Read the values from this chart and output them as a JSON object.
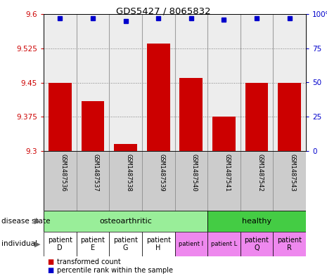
{
  "title": "GDS5427 / 8065832",
  "samples": [
    "GSM1487536",
    "GSM1487537",
    "GSM1487538",
    "GSM1487539",
    "GSM1487540",
    "GSM1487541",
    "GSM1487542",
    "GSM1487543"
  ],
  "bar_values": [
    9.45,
    9.41,
    9.315,
    9.535,
    9.46,
    9.375,
    9.45,
    9.45
  ],
  "percentile_values": [
    97,
    97,
    95,
    97,
    97,
    96,
    97,
    97
  ],
  "ylim": [
    9.3,
    9.6
  ],
  "yticks": [
    9.3,
    9.375,
    9.45,
    9.525,
    9.6
  ],
  "ytick_labels_right": [
    "0",
    "25",
    "50",
    "75",
    "100%"
  ],
  "ytick_labels_left": [
    "9.3",
    "9.375",
    "9.45",
    "9.525",
    "9.6"
  ],
  "bar_color": "#cc0000",
  "percentile_color": "#0000cc",
  "bar_bottom": 9.3,
  "disease_state_groups": [
    {
      "label": "osteoarthritic",
      "start": 0,
      "end": 4,
      "color": "#99ee99"
    },
    {
      "label": "healthy",
      "start": 5,
      "end": 7,
      "color": "#44cc44"
    }
  ],
  "individual_labels": [
    "patient\nD",
    "patient\nE",
    "patient\nG",
    "patient\nH",
    "patient I",
    "patient L",
    "patient\nQ",
    "patient\nR"
  ],
  "individual_bg": [
    "#ffffff",
    "#ffffff",
    "#ffffff",
    "#ffffff",
    "#ee88ee",
    "#ee88ee",
    "#ee88ee",
    "#ee88ee"
  ],
  "sample_bg_color": "#cccccc",
  "grid_color": "#555555",
  "left_label_color": "#cc0000",
  "right_label_color": "#0000cc",
  "fig_bg": "#ffffff"
}
